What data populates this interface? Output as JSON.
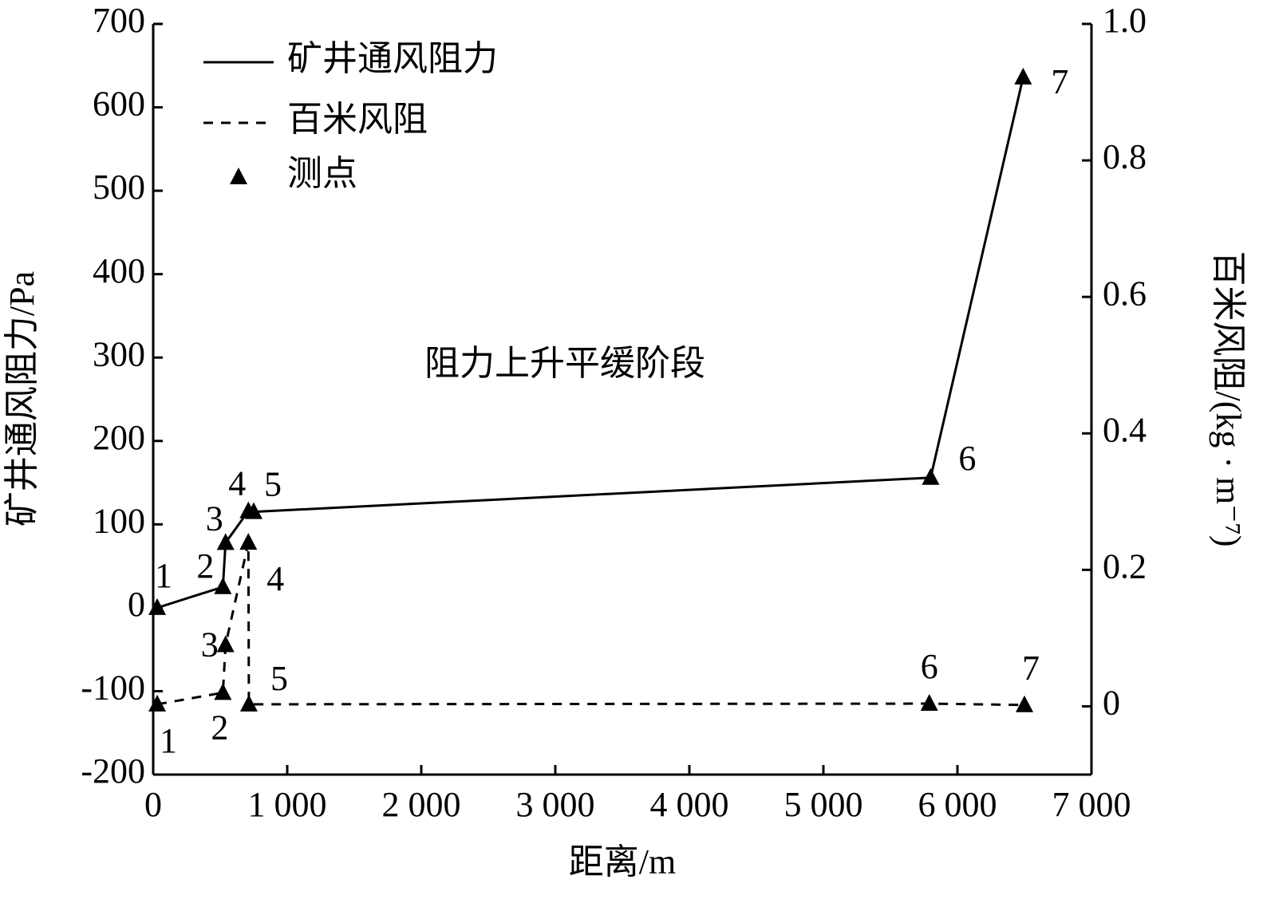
{
  "chart_data": {
    "type": "line",
    "x_label": "距离/m",
    "y_label": "矿井通风阻力/Pa",
    "y2_label": "百米风阻/(kg · m⁻⁷)",
    "annotation": "阻力上升平缓阶段",
    "marker_label": "测点",
    "legend": "upper left",
    "xlim": [
      0,
      7000
    ],
    "xticks": [
      0,
      {
        "value": 1000,
        "label": "1 000"
      },
      {
        "value": 2000,
        "label": "2 000"
      },
      {
        "value": 3000,
        "label": "3 000"
      },
      {
        "value": 4000,
        "label": "4 000"
      },
      {
        "value": 5000,
        "label": "5 000"
      },
      {
        "value": 6000,
        "label": "6 000"
      },
      {
        "value": 7000,
        "label": "7 000"
      }
    ],
    "ylim": [
      -200,
      700
    ],
    "yticks": [
      -200,
      -100,
      0,
      100,
      200,
      300,
      400,
      500,
      600,
      700
    ],
    "y2lim": [
      -0.1,
      1.0
    ],
    "y2ticks": [
      0,
      0.2,
      0.4,
      0.6,
      0.8,
      {
        "value": 1.0,
        "label": "1.0"
      }
    ],
    "series": [
      {
        "name": "矿井通风阻力",
        "color": "#000000",
        "dash": false,
        "x": [
          30,
          520,
          540,
          710,
          750,
          5800,
          6490
        ],
        "values": [
          0,
          25,
          78,
          116,
          115,
          156,
          636
        ],
        "point_labels": [
          "1",
          "2",
          "3",
          "4",
          "5",
          "6",
          "7"
        ]
      },
      {
        "name": "百米风阻",
        "color": "#000000",
        "dash": true,
        "axis": "y2",
        "x": [
          30,
          520,
          540,
          710,
          714,
          5790,
          6500
        ],
        "values": [
          0.003,
          0.02,
          0.09,
          0.24,
          0.003,
          0.004,
          0.002
        ],
        "point_labels": [
          "1",
          "2",
          "3",
          "4",
          "5",
          "6",
          "7"
        ]
      }
    ]
  }
}
